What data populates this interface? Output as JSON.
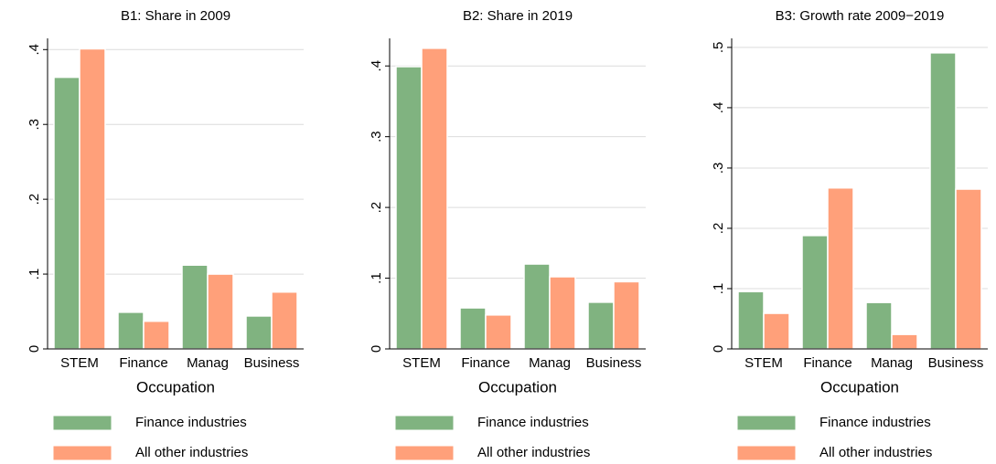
{
  "chart_data": [
    {
      "type": "bar",
      "title": "B1: Share in 2009",
      "x_label": "Occupation",
      "categories": [
        "STEM",
        "Finance",
        "Manag",
        "Business"
      ],
      "series": [
        {
          "name": "Finance industries",
          "color": "#80b380",
          "values": [
            0.363,
            0.049,
            0.112,
            0.044
          ]
        },
        {
          "name": "All other industries",
          "color": "#ffa07a",
          "values": [
            0.401,
            0.037,
            0.1,
            0.076
          ]
        }
      ],
      "ylim": [
        0,
        0.415
      ],
      "yticks": [
        0,
        {
          "value": 0.1,
          "label": ".1"
        },
        {
          "value": 0.2,
          "label": ".2"
        },
        {
          "value": 0.3,
          "label": ".3"
        },
        {
          "value": 0.4,
          "label": ".4"
        }
      ],
      "grid": true
    },
    {
      "type": "bar",
      "title": "B2: Share in 2019",
      "x_label": "Occupation",
      "categories": [
        "STEM",
        "Finance",
        "Manag",
        "Business"
      ],
      "series": [
        {
          "name": "Finance industries",
          "color": "#80b380",
          "values": [
            0.399,
            0.058,
            0.12,
            0.066
          ]
        },
        {
          "name": "All other industries",
          "color": "#ffa07a",
          "values": [
            0.425,
            0.048,
            0.102,
            0.095
          ]
        }
      ],
      "ylim": [
        0,
        0.439
      ],
      "yticks": [
        0,
        {
          "value": 0.1,
          "label": ".1"
        },
        {
          "value": 0.2,
          "label": ".2"
        },
        {
          "value": 0.3,
          "label": ".3"
        },
        {
          "value": 0.4,
          "label": ".4"
        }
      ],
      "grid": true
    },
    {
      "type": "bar",
      "title": "B3: Growth rate 2009−2019",
      "x_label": "Occupation",
      "categories": [
        "STEM",
        "Finance",
        "Manag",
        "Business"
      ],
      "series": [
        {
          "name": "Finance industries",
          "color": "#80b380",
          "values": [
            0.095,
            0.188,
            0.077,
            0.491
          ]
        },
        {
          "name": "All other industries",
          "color": "#ffa07a",
          "values": [
            0.059,
            0.267,
            0.024,
            0.265
          ]
        }
      ],
      "ylim": [
        0,
        0.515
      ],
      "yticks": [
        0,
        {
          "value": 0.1,
          "label": ".1"
        },
        {
          "value": 0.2,
          "label": ".2"
        },
        {
          "value": 0.3,
          "label": ".3"
        },
        {
          "value": 0.4,
          "label": ".4"
        },
        {
          "value": 0.5,
          "label": ".5"
        }
      ],
      "grid": true
    }
  ]
}
